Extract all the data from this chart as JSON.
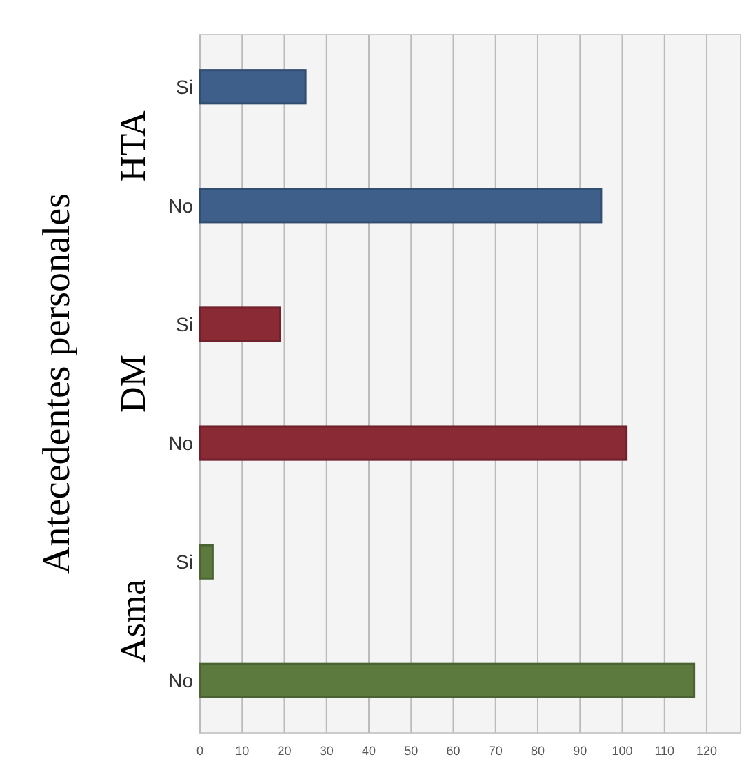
{
  "chart_data": {
    "type": "bar",
    "orientation": "horizontal",
    "ylabel": "Antecedentes personales",
    "categories": [
      "Si",
      "No",
      "Si",
      "No",
      "Si",
      "No"
    ],
    "series": [
      {
        "name": "HTA",
        "color": "#3d5f8a",
        "values": [
          25,
          95,
          null,
          null,
          null,
          null
        ]
      },
      {
        "name": "DM",
        "color": "#8a2a35",
        "values": [
          null,
          null,
          19,
          101,
          null,
          null
        ]
      },
      {
        "name": "Asma",
        "color": "#5d7a3e",
        "values": [
          null,
          null,
          null,
          null,
          3,
          117
        ]
      }
    ],
    "xlim": [
      0,
      128
    ],
    "xticks": [
      0,
      10,
      20,
      30,
      40,
      50,
      60,
      70,
      80,
      90,
      100,
      110,
      120
    ],
    "grid": "x"
  }
}
